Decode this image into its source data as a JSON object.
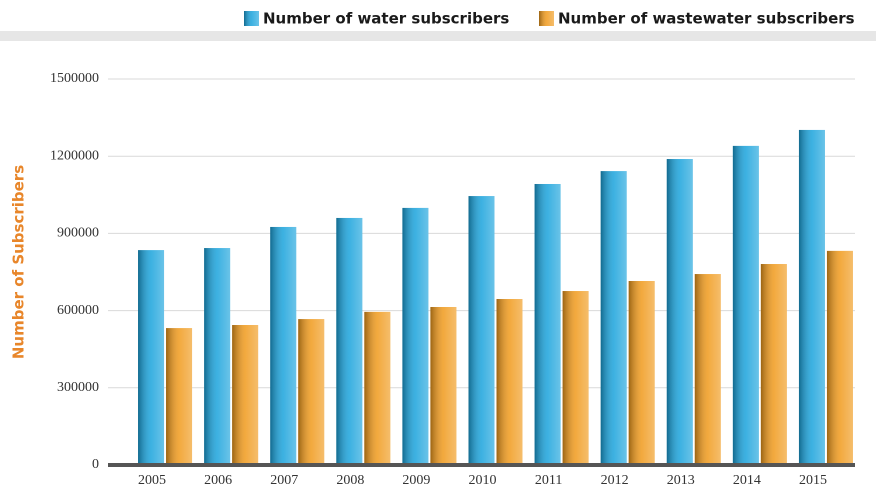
{
  "chart_data": {
    "type": "bar",
    "y_label": "Number of Subscribers",
    "categories": [
      "2005",
      "2006",
      "2007",
      "2008",
      "2009",
      "2010",
      "2011",
      "2012",
      "2013",
      "2014",
      "2015"
    ],
    "series": [
      {
        "name": "Number of water subscribers",
        "color": "#1aa3dc",
        "values": [
          835000,
          843000,
          925000,
          960000,
          999000,
          1045000,
          1092000,
          1142000,
          1189000,
          1240000,
          1302000
        ]
      },
      {
        "name": "Number of wastewater subscribers",
        "color": "#f09a1c",
        "values": [
          532000,
          544000,
          567000,
          595000,
          614000,
          645000,
          676000,
          715000,
          742000,
          781000,
          832000
        ]
      }
    ],
    "ylim": [
      0,
      1500000
    ],
    "yticks": [
      0,
      300000,
      600000,
      900000,
      1200000,
      1500000
    ],
    "grid": true
  }
}
